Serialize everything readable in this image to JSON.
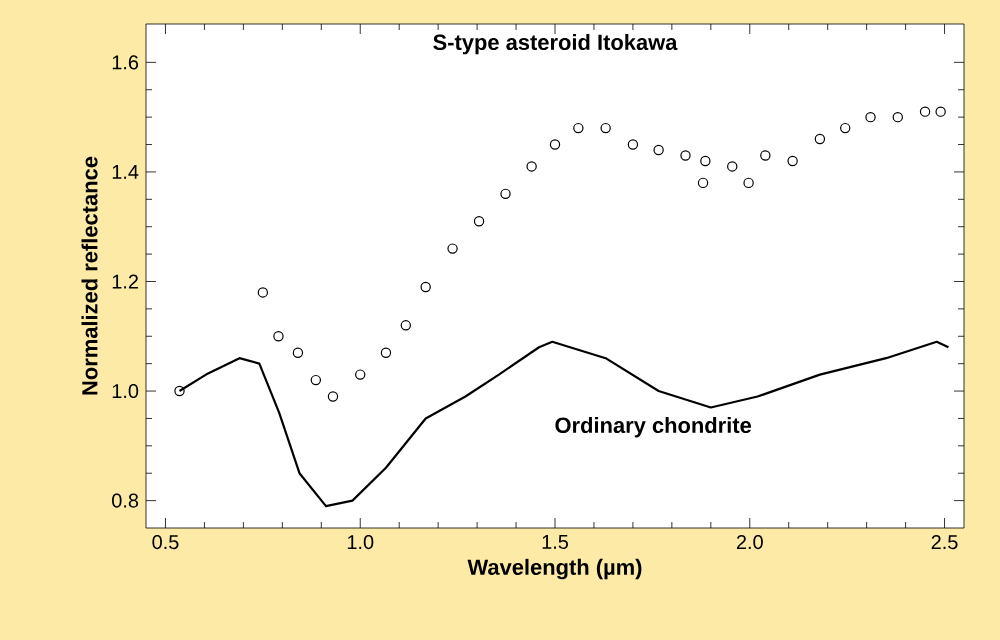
{
  "chart_data": {
    "type": "scatter",
    "xlabel": "Wavelength (µm)",
    "ylabel": "Normalized reflectance",
    "xlim": [
      0.45,
      2.55
    ],
    "xticks": [
      0.5,
      {
        "value": 1,
        "label": "1.0"
      },
      1.5,
      {
        "value": 2,
        "label": "2.0"
      },
      2.5
    ],
    "ylim": [
      0.75,
      1.67
    ],
    "yticks": [
      0.8,
      {
        "value": 1,
        "label": "1.0"
      },
      1.2,
      1.4,
      1.6
    ],
    "grid": false,
    "series": [
      {
        "name": "S-type asteroid Itokawa",
        "marker": "circle",
        "color": "#000000",
        "x": [
          0.536,
          0.75,
          0.79,
          0.84,
          0.886,
          0.93,
          1.0,
          1.066,
          1.117,
          1.168,
          1.237,
          1.305,
          1.373,
          1.44,
          1.5,
          1.56,
          1.63,
          1.7,
          1.766,
          1.835,
          1.88,
          1.886,
          1.955,
          1.997,
          2.04,
          2.11,
          2.18,
          2.245,
          2.31,
          2.38,
          2.45,
          2.49
        ],
        "values": [
          1.0,
          1.18,
          1.1,
          1.07,
          1.02,
          0.99,
          1.03,
          1.07,
          1.12,
          1.19,
          1.26,
          1.31,
          1.36,
          1.41,
          1.45,
          1.48,
          1.48,
          1.45,
          1.44,
          1.43,
          1.38,
          1.42,
          1.41,
          1.38,
          1.43,
          1.42,
          1.46,
          1.48,
          1.5,
          1.5,
          1.51,
          1.51
        ]
      },
      {
        "name": "Ordinary chondrite",
        "type": "line",
        "color": "#000000",
        "line_style": "solid",
        "x": [
          0.536,
          0.604,
          0.69,
          0.741,
          0.792,
          0.844,
          0.912,
          0.98,
          1.066,
          1.168,
          1.27,
          1.356,
          1.459,
          1.493,
          1.63,
          1.766,
          1.9,
          2.02,
          2.18,
          2.35,
          2.48,
          2.51
        ],
        "values": [
          1.0,
          1.03,
          1.06,
          1.05,
          0.96,
          0.85,
          0.79,
          0.8,
          0.86,
          0.95,
          0.99,
          1.03,
          1.08,
          1.09,
          1.06,
          1.0,
          0.97,
          0.99,
          1.03,
          1.06,
          1.09,
          1.08
        ]
      }
    ]
  }
}
